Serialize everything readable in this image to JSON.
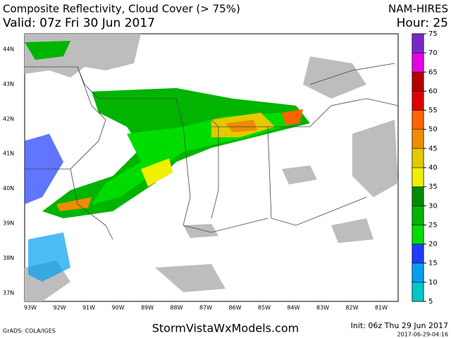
{
  "header": {
    "title": "Composite Reflectivity, Cloud Cover (> 75%)",
    "valid": "Valid: 07z Fri 30 Jun 2017",
    "model": "NAM-HIRES",
    "hour": "Hour: 25"
  },
  "map": {
    "lat_labels": [
      "44N",
      "43N",
      "42N",
      "41N",
      "40N",
      "39N",
      "38N",
      "37N"
    ],
    "lon_labels": [
      "93W",
      "92W",
      "91W",
      "90W",
      "89W",
      "88W",
      "87W",
      "86W",
      "85W",
      "84W",
      "83W",
      "82W",
      "81W"
    ]
  },
  "colorbar": {
    "ticks": [
      5,
      10,
      15,
      20,
      25,
      30,
      35,
      40,
      45,
      50,
      55,
      60,
      65,
      70,
      75
    ],
    "colors": [
      "#00c8c8",
      "#00a0f0",
      "#1e3cff",
      "#00dc00",
      "#00b400",
      "#008c00",
      "#f0f000",
      "#e6c800",
      "#f08c00",
      "#ff6400",
      "#e00000",
      "#b40000",
      "#e600e6",
      "#7828c8"
    ]
  },
  "footer": {
    "credit": "GrADS: COLA/IGES",
    "site": "StormVistaWxModels.com",
    "init": "Init: 06z Thu 29 Jun 2017",
    "timestamp": "2017-06-29-04:16"
  }
}
